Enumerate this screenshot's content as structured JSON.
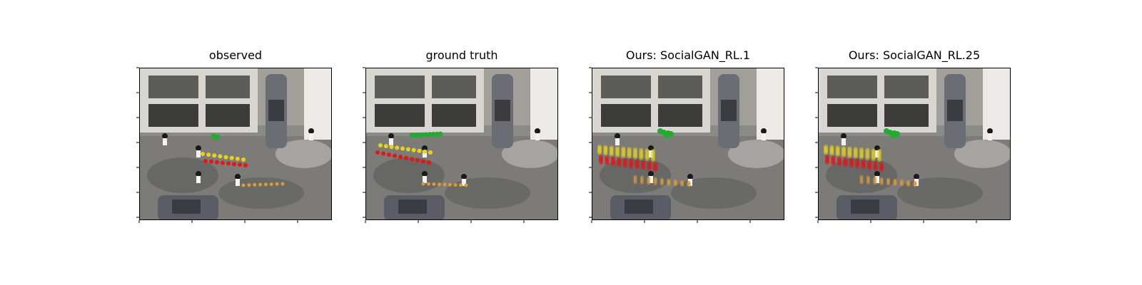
{
  "panels": [
    {
      "title": "observed"
    },
    {
      "title": "ground truth"
    },
    {
      "title": "Ours: SocialGAN_RL.1"
    },
    {
      "title": "Ours: SocialGAN_RL.25"
    }
  ],
  "colors": {
    "green": "#22aa33",
    "yellow": "#e6d21e",
    "red": "#e01818",
    "orange": "#d89a3c"
  }
}
